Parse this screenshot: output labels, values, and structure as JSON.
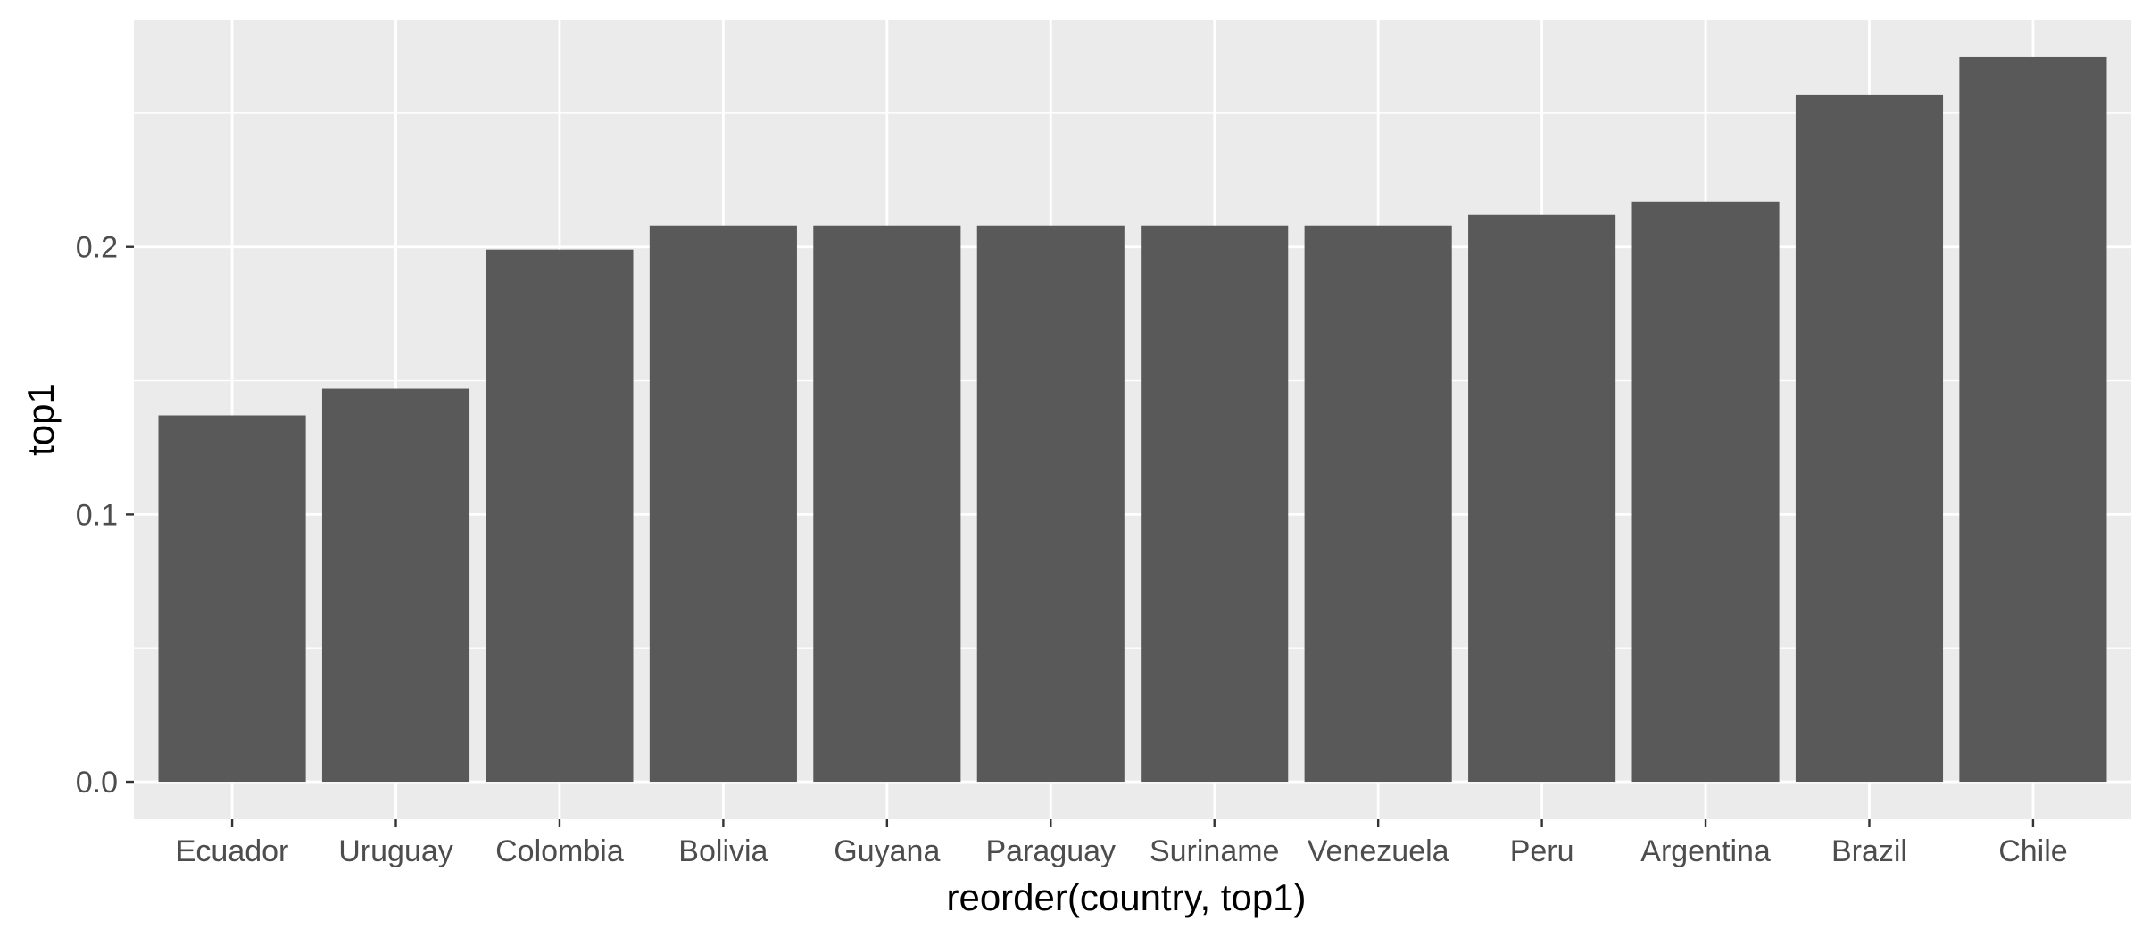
{
  "chart_data": {
    "type": "bar",
    "title": "",
    "xlabel": "reorder(country, top1)",
    "ylabel": "top1",
    "categories": [
      "Ecuador",
      "Uruguay",
      "Colombia",
      "Bolivia",
      "Guyana",
      "Paraguay",
      "Suriname",
      "Venezuela",
      "Peru",
      "Argentina",
      "Brazil",
      "Chile"
    ],
    "values": [
      0.137,
      0.147,
      0.199,
      0.208,
      0.208,
      0.208,
      0.208,
      0.208,
      0.212,
      0.217,
      0.257,
      0.271
    ],
    "ylim": [
      -0.014,
      285
    ],
    "y_ticks": [
      0.0,
      0.1,
      0.2
    ],
    "y_tick_labels": [
      "0.0",
      "0.1",
      "0.2"
    ],
    "grid": true,
    "legend": "none",
    "colors": {
      "bar": "#595959",
      "panel": "#ebebeb",
      "grid": "#ffffff",
      "tick": "#333333"
    }
  }
}
